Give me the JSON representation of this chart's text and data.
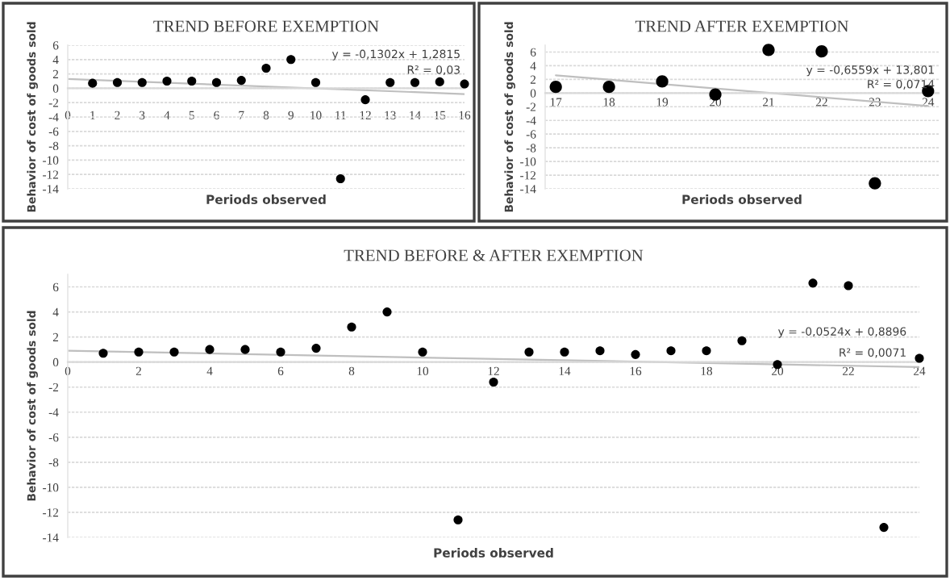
{
  "chart_data": [
    {
      "type": "scatter",
      "title": "TREND BEFORE EXEMPTION",
      "xlabel": "Periods observed",
      "ylabel": "Behavior of cost of goods sold",
      "xlim": [
        0,
        16
      ],
      "xticks": [
        0,
        1,
        2,
        3,
        4,
        5,
        6,
        7,
        8,
        9,
        10,
        11,
        12,
        13,
        14,
        15,
        16
      ],
      "ylim": [
        -14,
        6
      ],
      "yticks": [
        -14,
        -12,
        -10,
        -8,
        -6,
        -4,
        -2,
        0,
        2,
        4,
        6
      ],
      "grid": "y",
      "legend": false,
      "marker": "circle",
      "series": [
        {
          "color": "#000000",
          "x": [
            1,
            2,
            3,
            4,
            5,
            6,
            7,
            8,
            9,
            10,
            11,
            12,
            13,
            14,
            15,
            16
          ],
          "values": [
            0.7,
            0.8,
            0.8,
            1.0,
            1.0,
            0.8,
            1.1,
            2.8,
            4.0,
            0.8,
            -12.6,
            -1.6,
            0.8,
            0.8,
            0.9,
            0.6
          ]
        },
        {
          "type": "line",
          "marker": "none",
          "color": "#bfbfbf",
          "x": [
            0,
            16
          ],
          "values": [
            1.3,
            -0.8
          ]
        }
      ],
      "annotations": [
        "y = -0,1302x + 1,2815",
        "R² = 0,03"
      ]
    },
    {
      "type": "scatter",
      "title": "TREND AFTER EXEMPTION",
      "xlabel": "Periods observed",
      "ylabel": "Behavior of cost of goods sold",
      "xlim": [
        16.8,
        24.2
      ],
      "xticks": [
        17,
        18,
        19,
        20,
        21,
        22,
        23,
        24
      ],
      "ylim": [
        -14,
        7
      ],
      "yticks": [
        -14,
        -12,
        -10,
        -8,
        -6,
        -4,
        -2,
        0,
        2,
        4,
        6
      ],
      "grid": "y",
      "legend": false,
      "marker": "circle",
      "series": [
        {
          "color": "#000000",
          "x": [
            17,
            18,
            19,
            20,
            21,
            22,
            23,
            24
          ],
          "values": [
            0.9,
            0.9,
            1.7,
            -0.2,
            6.3,
            6.1,
            -13.2,
            0.3
          ]
        },
        {
          "type": "line",
          "marker": "none",
          "color": "#bfbfbf",
          "x": [
            17,
            24
          ],
          "values": [
            2.6,
            -1.9
          ]
        }
      ],
      "annotations": [
        "y = -0,6559x + 13,801",
        "R² = 0,0714"
      ]
    },
    {
      "type": "scatter",
      "title": "TREND BEFORE & AFTER EXEMPTION",
      "xlabel": "Periods observed",
      "ylabel": "Behavior of cost of goods sold",
      "xlim": [
        0,
        24
      ],
      "xticks": [
        0,
        2,
        4,
        6,
        8,
        10,
        12,
        14,
        16,
        18,
        20,
        22,
        24
      ],
      "ylim": [
        -14,
        7
      ],
      "yticks": [
        -14,
        -12,
        -10,
        -8,
        -6,
        -4,
        -2,
        0,
        2,
        4,
        6
      ],
      "grid": "y",
      "legend": false,
      "marker": "circle",
      "series": [
        {
          "color": "#000000",
          "x": [
            1,
            2,
            3,
            4,
            5,
            6,
            7,
            8,
            9,
            10,
            11,
            12,
            13,
            14,
            15,
            16,
            17,
            18,
            19,
            20,
            21,
            22,
            23,
            24
          ],
          "values": [
            0.7,
            0.8,
            0.8,
            1.0,
            1.0,
            0.8,
            1.1,
            2.8,
            4.0,
            0.8,
            -12.6,
            -1.6,
            0.8,
            0.8,
            0.9,
            0.6,
            0.9,
            0.9,
            1.7,
            -0.2,
            6.3,
            6.1,
            -13.2,
            0.3
          ]
        },
        {
          "type": "line",
          "marker": "none",
          "color": "#bfbfbf",
          "x": [
            0,
            24
          ],
          "values": [
            0.9,
            -0.4
          ]
        }
      ],
      "annotations": [
        "y = -0,0524x + 0,8896",
        "R² = 0,0071"
      ]
    }
  ]
}
